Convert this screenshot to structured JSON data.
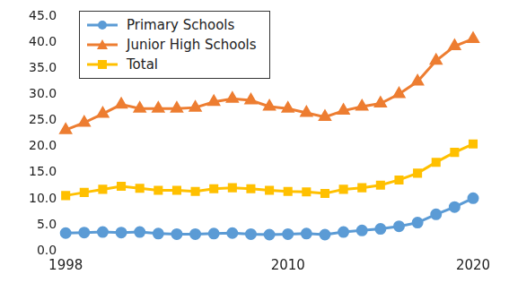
{
  "chart_data": {
    "type": "line",
    "categories": [
      "1998",
      null,
      null,
      null,
      null,
      null,
      null,
      null,
      null,
      null,
      null,
      null,
      "2010",
      null,
      null,
      null,
      null,
      null,
      null,
      null,
      null,
      null,
      "2020"
    ],
    "series": [
      {
        "name": "Primary Schools",
        "color": "#5b9bd5",
        "marker": "circle",
        "values": [
          3.4,
          3.5,
          3.6,
          3.5,
          3.6,
          3.3,
          3.2,
          3.2,
          3.3,
          3.4,
          3.2,
          3.1,
          3.2,
          3.3,
          3.1,
          3.6,
          3.9,
          4.2,
          4.7,
          5.4,
          7.0,
          8.4,
          10.1
        ]
      },
      {
        "name": "Junior High Schools",
        "color": "#ed7d31",
        "marker": "triangle",
        "values": [
          23.2,
          24.6,
          26.3,
          28.1,
          27.3,
          27.3,
          27.3,
          27.5,
          28.6,
          29.2,
          28.9,
          27.7,
          27.3,
          26.5,
          25.7,
          26.9,
          27.7,
          28.3,
          30.1,
          32.5,
          36.5,
          39.3,
          40.7
        ]
      },
      {
        "name": "Total",
        "color": "#ffc000",
        "marker": "square",
        "values": [
          10.6,
          11.2,
          11.8,
          12.4,
          12.0,
          11.6,
          11.6,
          11.4,
          11.9,
          12.1,
          11.9,
          11.6,
          11.4,
          11.3,
          11.0,
          11.8,
          12.1,
          12.6,
          13.6,
          14.9,
          17.0,
          18.9,
          20.5
        ]
      }
    ],
    "ylim": [
      0,
      45
    ],
    "yticks": [
      {
        "value": 0,
        "label": "0.0"
      },
      {
        "value": 5,
        "label": "5.0"
      },
      {
        "value": 10,
        "label": "10.0"
      },
      {
        "value": 15,
        "label": "15.0"
      },
      {
        "value": 20,
        "label": "20.0"
      },
      {
        "value": 25,
        "label": "25.0"
      },
      {
        "value": 30,
        "label": "30.0"
      },
      {
        "value": 35,
        "label": "35.0"
      },
      {
        "value": 40,
        "label": "40.0"
      },
      {
        "value": 45,
        "label": "45.0"
      }
    ],
    "grid": false,
    "legend": "upper left"
  }
}
